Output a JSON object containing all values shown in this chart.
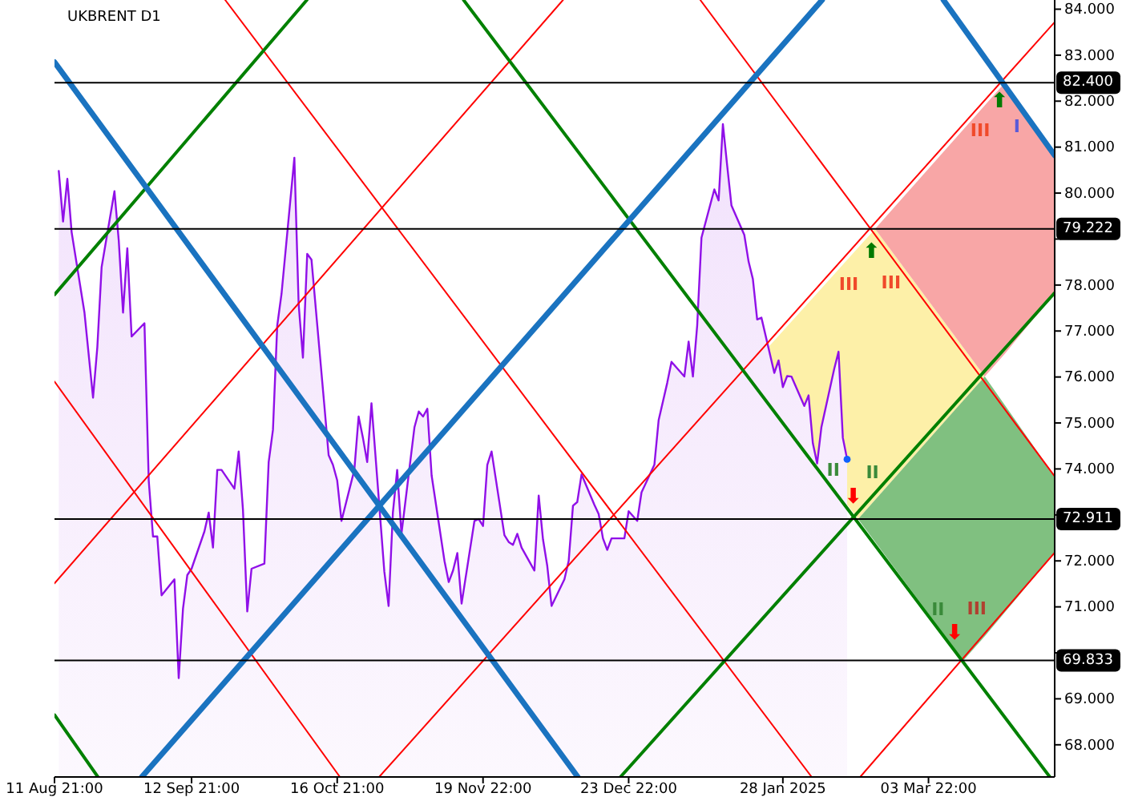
{
  "chart_data": {
    "type": "line",
    "title": "UKBRENT D1",
    "xlim": [
      "2024-08-11T21:00",
      "2025-04-02T09:00"
    ],
    "xticks": [
      {
        "value": "2024-08-11T21:00",
        "label": "11 Aug 21:00"
      },
      {
        "value": "2024-09-12T21:00",
        "label": "12 Sep 21:00"
      },
      {
        "value": "2024-10-16T21:00",
        "label": "16 Oct 21:00"
      },
      {
        "value": "2024-11-19T22:00",
        "label": "19 Nov 22:00"
      },
      {
        "value": "2024-12-23T22:00",
        "label": "23 Dec 22:00"
      },
      {
        "value": "2025-01-28T22:00",
        "label": "28 Jan 2025"
      },
      {
        "value": "2025-03-03T22:00",
        "label": "03 Mar 22:00"
      }
    ],
    "ylim": [
      67.3,
      84.2
    ],
    "yticks": [
      {
        "value": 68,
        "label": "68.000"
      },
      {
        "value": 69,
        "label": "69.000"
      },
      {
        "value": 70,
        "label": null
      },
      {
        "value": 71,
        "label": "71.000"
      },
      {
        "value": 72,
        "label": "72.000"
      },
      {
        "value": 73,
        "label": null
      },
      {
        "value": 74,
        "label": "74.000"
      },
      {
        "value": 75,
        "label": "75.000"
      },
      {
        "value": 76,
        "label": "76.000"
      },
      {
        "value": 77,
        "label": "77.000"
      },
      {
        "value": 78,
        "label": "78.000"
      },
      {
        "value": 79,
        "label": null
      },
      {
        "value": 80,
        "label": "80.000"
      },
      {
        "value": 81,
        "label": "81.000"
      },
      {
        "value": 82,
        "label": "82.000"
      },
      {
        "value": 83,
        "label": "83.000"
      },
      {
        "value": 84,
        "label": "84.000"
      }
    ],
    "ref_lines": [
      {
        "axis": "y",
        "value": 82.4,
        "label": "82.400",
        "color": "#000000"
      },
      {
        "axis": "y",
        "value": 79.222,
        "label": "79.222",
        "color": "#000000"
      },
      {
        "axis": "y",
        "value": 72.911,
        "label": "72.911",
        "color": "#000000"
      },
      {
        "axis": "y",
        "value": 69.833,
        "label": "69.833",
        "color": "#000000"
      }
    ],
    "annotations": [
      "III",
      "I",
      "III",
      "III",
      "II",
      "II",
      "II",
      "III",
      "⬆",
      "⬆",
      "⬇",
      "⬇"
    ],
    "series": [
      {
        "type": "area",
        "color": "#fdf0a8",
        "x": [
          "2025-01-20T09:31",
          "2025-02-15T11:36",
          "2025-02-19T10:48",
          "2025-03-17T01:31"
        ],
        "values": [
          null,
          null,
          null,
          null
        ],
        "lower": [
          76.12,
          72.911,
          73.33,
          76.01
        ],
        "upper": [
          76.12,
          78.81,
          79.222,
          76.01
        ]
      },
      {
        "type": "area",
        "color": "#f8a6a6",
        "x": [
          "2025-02-19T10:48",
          "2025-03-17T01:31",
          "2025-03-21T18:24",
          "2025-04-02T09:00"
        ],
        "values": [
          null,
          null,
          null,
          null
        ],
        "lower": [
          79.222,
          76.01,
          76.51,
          77.83
        ],
        "upper": [
          79.222,
          81.91,
          82.4,
          80.82
        ]
      },
      {
        "type": "area",
        "color": "#80c080",
        "x": [
          "2025-02-15T11:36",
          "2025-03-12T01:10",
          "2025-03-17T01:31",
          "2025-04-02T09:00"
        ],
        "values": [
          null,
          null,
          null,
          null
        ],
        "lower": [
          72.911,
          69.833,
          70.36,
          72.18
        ],
        "upper": [
          72.911,
          75.49,
          76.01,
          73.84
        ]
      },
      {
        "type": "area",
        "color": "#9010e8",
        "x": [
          "2024-08-12T21:00",
          "2024-08-13T21:00",
          "2024-08-14T21:00",
          "2024-08-15T21:00",
          "2024-08-18T21:00",
          "2024-08-19T21:00",
          "2024-08-20T21:00",
          "2024-08-21T21:00",
          "2024-08-22T21:00",
          "2024-08-25T21:00",
          "2024-08-26T21:00",
          "2024-08-27T21:00",
          "2024-08-28T21:00",
          "2024-08-29T21:00",
          "2024-09-01T21:00",
          "2024-09-02T21:00",
          "2024-09-03T21:00",
          "2024-09-04T21:00",
          "2024-09-05T21:00",
          "2024-09-08T21:00",
          "2024-09-09T21:00",
          "2024-09-10T21:00",
          "2024-09-11T21:00",
          "2024-09-12T21:00",
          "2024-09-15T21:00",
          "2024-09-16T21:00",
          "2024-09-17T21:00",
          "2024-09-18T21:00",
          "2024-09-19T21:00",
          "2024-09-22T21:00",
          "2024-09-23T21:00",
          "2024-09-24T21:00",
          "2024-09-25T21:00",
          "2024-09-26T21:00",
          "2024-09-29T21:00",
          "2024-09-30T21:00",
          "2024-10-01T21:00",
          "2024-10-02T21:00",
          "2024-10-03T21:00",
          "2024-10-06T21:00",
          "2024-10-07T21:00",
          "2024-10-08T21:00",
          "2024-10-09T21:00",
          "2024-10-10T21:00",
          "2024-10-13T21:00",
          "2024-10-14T21:00",
          "2024-10-15T21:00",
          "2024-10-16T21:00",
          "2024-10-17T21:00",
          "2024-10-20T21:00",
          "2024-10-21T21:00",
          "2024-10-22T21:00",
          "2024-10-23T21:00",
          "2024-10-24T21:00",
          "2024-10-27T21:00",
          "2024-10-28T21:00",
          "2024-10-29T21:00",
          "2024-10-30T21:00",
          "2024-10-31T21:00",
          "2024-11-03T22:00",
          "2024-11-04T22:00",
          "2024-11-05T22:00",
          "2024-11-06T22:00",
          "2024-11-07T22:00",
          "2024-11-10T22:00",
          "2024-11-11T22:00",
          "2024-11-12T22:00",
          "2024-11-13T22:00",
          "2024-11-14T22:00",
          "2024-11-17T22:00",
          "2024-11-18T22:00",
          "2024-11-19T22:00",
          "2024-11-20T22:00",
          "2024-11-21T22:00",
          "2024-11-24T22:00",
          "2024-11-25T22:00",
          "2024-11-26T22:00",
          "2024-11-27T22:00",
          "2024-11-28T22:00",
          "2024-12-01T22:00",
          "2024-12-02T22:00",
          "2024-12-03T22:00",
          "2024-12-04T22:00",
          "2024-12-05T22:00",
          "2024-12-08T22:00",
          "2024-12-09T22:00",
          "2024-12-10T22:00",
          "2024-12-11T22:00",
          "2024-12-12T22:00",
          "2024-12-15T22:00",
          "2024-12-16T22:00",
          "2024-12-17T22:00",
          "2024-12-18T22:00",
          "2024-12-19T22:00",
          "2024-12-22T22:00",
          "2024-12-23T22:00",
          "2024-12-25T22:00",
          "2024-12-26T22:00",
          "2024-12-29T22:00",
          "2024-12-30T22:00",
          "2025-01-01T22:00",
          "2025-01-02T22:00",
          "2025-01-05T22:00",
          "2025-01-06T22:00",
          "2025-01-07T22:00",
          "2025-01-08T22:00",
          "2025-01-09T22:00",
          "2025-01-12T22:00",
          "2025-01-13T22:00",
          "2025-01-14T22:00",
          "2025-01-15T22:00",
          "2025-01-16T22:00",
          "2025-01-19T22:00",
          "2025-01-20T22:00",
          "2025-01-21T22:00",
          "2025-01-22T22:00",
          "2025-01-23T22:00",
          "2025-01-26T22:00",
          "2025-01-27T22:00",
          "2025-01-28T22:00",
          "2025-01-29T22:00",
          "2025-01-30T22:00",
          "2025-02-02T22:00",
          "2025-02-03T22:00",
          "2025-02-04T22:00",
          "2025-02-05T22:00",
          "2025-02-06T22:00",
          "2025-02-09T22:00",
          "2025-02-10T22:00",
          "2025-02-11T22:00",
          "2025-02-12T22:00"
        ],
        "values": [
          80.48,
          79.38,
          80.31,
          79.15,
          77.4,
          76.47,
          75.55,
          76.65,
          78.39,
          80.04,
          78.97,
          77.4,
          78.8,
          76.88,
          77.17,
          73.75,
          72.53,
          72.53,
          71.25,
          71.6,
          69.45,
          70.96,
          71.69,
          71.83,
          72.64,
          73.05,
          72.29,
          73.98,
          73.98,
          73.57,
          74.38,
          73.11,
          70.9,
          71.83,
          71.94,
          74.15,
          74.85,
          77.12,
          77.81,
          80.77,
          77.58,
          76.42,
          78.68,
          78.55,
          75.38,
          74.3,
          74.09,
          73.75,
          72.87,
          73.98,
          75.14,
          74.68,
          74.15,
          75.43,
          71.77,
          71.02,
          73.05,
          73.98,
          72.59,
          74.91,
          75.25,
          75.14,
          75.31,
          73.86,
          72.0,
          71.54,
          71.79,
          72.17,
          71.07,
          72.87,
          72.91,
          72.76,
          74.09,
          74.38,
          72.56,
          72.41,
          72.35,
          72.59,
          72.29,
          71.79,
          73.42,
          72.47,
          71.89,
          71.02,
          71.6,
          72.0,
          73.2,
          73.28,
          73.88,
          73.22,
          73.02,
          72.49,
          72.24,
          72.49,
          72.49,
          73.08,
          72.87,
          73.49,
          74.09,
          75.06,
          75.87,
          76.33,
          76.01,
          76.77,
          76.01,
          77.12,
          79.03,
          80.08,
          79.84,
          81.5,
          80.6,
          79.73,
          79.09,
          78.51,
          78.13,
          77.25,
          77.29,
          76.09,
          76.36,
          75.78,
          76.02,
          76.01,
          75.37,
          75.6,
          74.56,
          74.12,
          74.91,
          76.18,
          76.55,
          74.68,
          74.21
        ]
      },
      {
        "color": "#ff0000",
        "x": [
          "2024-08-11T21:00",
          "2024-10-17T12:19"
        ],
        "values": [
          75.9,
          67.3
        ]
      },
      {
        "color": "#ff0000",
        "x": [
          "2024-09-20T17:22",
          "2025-02-04T15:30"
        ],
        "values": [
          84.2,
          67.3
        ]
      },
      {
        "color": "#ff0000",
        "x": [
          "2025-01-09T15:24",
          "2025-04-02T09:00"
        ],
        "values": [
          84.2,
          73.84
        ]
      },
      {
        "color": "#ff0000",
        "x": [
          "2024-08-11T21:00",
          "2024-12-08T14:07"
        ],
        "values": [
          71.51,
          84.2
        ]
      },
      {
        "color": "#ff0000",
        "x": [
          "2024-10-26T15:53",
          "2025-04-02T09:00"
        ],
        "values": [
          67.3,
          83.72
        ]
      },
      {
        "color": "#ff0000",
        "x": [
          "2025-02-15T23:10",
          "2025-04-02T09:00"
        ],
        "values": [
          67.3,
          72.18
        ]
      },
      {
        "color": "#008000",
        "x": [
          "2024-08-11T21:00",
          "2024-10-09T19:00"
        ],
        "values": [
          77.79,
          84.2
        ]
      },
      {
        "color": "#008000",
        "x": [
          "2024-12-21T23:46",
          "2025-04-02T09:00"
        ],
        "values": [
          67.3,
          77.83
        ]
      },
      {
        "color": "#008000",
        "x": [
          "2024-11-15T09:04",
          "2025-04-01T06:00"
        ],
        "values": [
          84.2,
          67.3
        ]
      },
      {
        "color": "#008000",
        "x": [
          "2024-08-11T21:00",
          "2024-08-22T00:12"
        ],
        "values": [
          68.65,
          67.3
        ]
      },
      {
        "color": "#1a73c0",
        "x": [
          "2024-08-11T21:00",
          "2024-12-12T01:05"
        ],
        "values": [
          82.85,
          67.3
        ]
      },
      {
        "color": "#1a73c0",
        "x": [
          "2025-03-07T09:38",
          "2025-04-02T09:00"
        ],
        "values": [
          84.2,
          80.82
        ]
      },
      {
        "color": "#1a73c0",
        "x": [
          "2024-09-01T05:58",
          "2025-02-07T01:59"
        ],
        "values": [
          67.3,
          84.2
        ]
      },
      {
        "type": "scatter",
        "color": "#1060ff",
        "x": [
          "2025-02-12T22:00"
        ],
        "values": [
          74.21
        ]
      }
    ]
  }
}
